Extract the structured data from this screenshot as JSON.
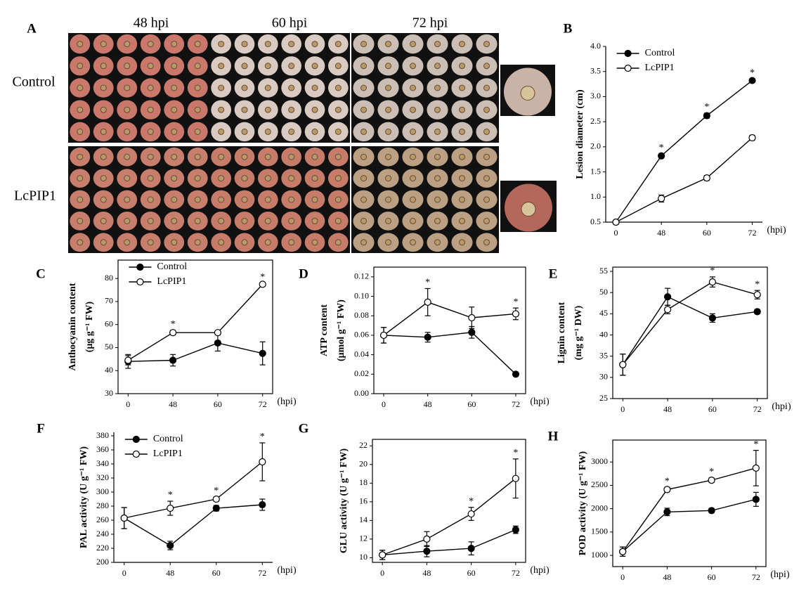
{
  "panel_a": {
    "label": "A",
    "columns": [
      "48 hpi",
      "60 hpi",
      "72 hpi"
    ],
    "rows": [
      "Control",
      "LcPIP1"
    ]
  },
  "chart_data": [
    {
      "type": "line",
      "panel": "B",
      "ylabel": [
        "Lesion diameter (cm)"
      ],
      "xlabel": "(hpi)",
      "categories": [
        "0",
        "48",
        "60",
        "72"
      ],
      "ylim": [
        0.5,
        4.0
      ],
      "yticks": [
        0.5,
        {
          "value": 1,
          "label": "1.0"
        },
        1.5,
        {
          "value": 2,
          "label": "2.0"
        },
        2.5,
        {
          "value": 3,
          "label": "3.0"
        },
        3.5,
        {
          "value": 4,
          "label": "4.0"
        }
      ],
      "legend": "upper left",
      "frame": "axes",
      "series": [
        {
          "name": "Control",
          "color": "#000000",
          "marker_fill": "#000000",
          "values": [
            0.5,
            1.82,
            2.62,
            3.32
          ],
          "errors": [
            0.02,
            0.04,
            0.05,
            0.03
          ]
        },
        {
          "name": "LcPIP1",
          "color": "#000000",
          "marker_fill": "#ffffff",
          "values": [
            0.5,
            0.97,
            1.38,
            2.18
          ],
          "errors": [
            0.02,
            0.07,
            0.05,
            0.05
          ]
        }
      ],
      "significance": [
        null,
        "*",
        "*",
        "*"
      ]
    },
    {
      "type": "line",
      "panel": "C",
      "ylabel": [
        "Anthocyanin content",
        "(μg g⁻¹ FW)"
      ],
      "xlabel": "(hpi)",
      "categories": [
        "0",
        "48",
        "60",
        "72"
      ],
      "ylim": [
        30,
        88
      ],
      "yticks": [
        30,
        40,
        50,
        60,
        70,
        80
      ],
      "legend": "upper left",
      "frame": "box",
      "series": [
        {
          "name": "Control",
          "color": "#000000",
          "marker_fill": "#000000",
          "values": [
            44,
            44.5,
            52,
            47.5
          ],
          "errors": [
            3,
            2.5,
            3.5,
            5
          ]
        },
        {
          "name": "LcPIP1",
          "color": "#000000",
          "marker_fill": "#ffffff",
          "values": [
            44.5,
            56.5,
            56.5,
            77.5
          ],
          "errors": [
            2,
            1,
            0.5,
            0.5
          ]
        }
      ],
      "significance": [
        null,
        "*",
        null,
        "*"
      ]
    },
    {
      "type": "line",
      "panel": "D",
      "ylabel": [
        "ATP content",
        "(μmol g⁻¹ FW)"
      ],
      "xlabel": "(hpi)",
      "categories": [
        "0",
        "48",
        "60",
        "72"
      ],
      "ylim": [
        0,
        0.13
      ],
      "yticks": [
        {
          "value": 0,
          "label": "0.00"
        },
        0.02,
        0.04,
        0.06,
        0.08,
        {
          "value": 0.1,
          "label": "0.10"
        },
        0.12
      ],
      "frame": "box",
      "series": [
        {
          "color": "#000000",
          "marker_fill": "#000000",
          "values": [
            0.06,
            0.058,
            0.063,
            0.02
          ],
          "errors": [
            0.008,
            0.005,
            0.006,
            0.001
          ]
        },
        {
          "color": "#000000",
          "marker_fill": "#ffffff",
          "values": [
            0.06,
            0.094,
            0.078,
            0.082
          ],
          "errors": [
            0.008,
            0.014,
            0.011,
            0.006
          ]
        }
      ],
      "significance": [
        null,
        "*",
        null,
        "*"
      ]
    },
    {
      "type": "line",
      "panel": "E",
      "ylabel": [
        "Lignin content",
        "(mg g⁻¹ DW)"
      ],
      "xlabel": "(hpi)",
      "categories": [
        "0",
        "48",
        "60",
        "72"
      ],
      "ylim": [
        25,
        56
      ],
      "yticks": [
        25,
        30,
        35,
        40,
        45,
        50,
        55
      ],
      "frame": "box",
      "series": [
        {
          "color": "#000000",
          "marker_fill": "#000000",
          "values": [
            33,
            49,
            44,
            45.5
          ],
          "errors": [
            2.5,
            2,
            1,
            0.5
          ]
        },
        {
          "color": "#000000",
          "marker_fill": "#ffffff",
          "values": [
            33,
            46,
            52.5,
            49.5
          ],
          "errors": [
            2.5,
            1,
            1.2,
            1
          ]
        }
      ],
      "significance": [
        null,
        null,
        "*",
        "*"
      ]
    },
    {
      "type": "line",
      "panel": "F",
      "ylabel": [
        "PAL activity (U g⁻¹ FW)"
      ],
      "xlabel": "(hpi)",
      "categories": [
        "0",
        "48",
        "60",
        "72"
      ],
      "ylim": [
        200,
        385
      ],
      "yticks": [
        200,
        220,
        240,
        260,
        280,
        300,
        320,
        340,
        360,
        380
      ],
      "legend": "upper left",
      "frame": "axes",
      "series": [
        {
          "name": "Control",
          "color": "#000000",
          "marker_fill": "#000000",
          "values": [
            263,
            224,
            277,
            282
          ],
          "errors": [
            15,
            6,
            4,
            8
          ]
        },
        {
          "name": "LcPIP1",
          "color": "#000000",
          "marker_fill": "#ffffff",
          "values": [
            263,
            277,
            290,
            343
          ],
          "errors": [
            15,
            10,
            3,
            27
          ]
        }
      ],
      "significance": [
        null,
        "*",
        "*",
        "*"
      ]
    },
    {
      "type": "line",
      "panel": "G",
      "ylabel": [
        "GLU activity (U g⁻¹ FW)"
      ],
      "xlabel": "(hpi)",
      "categories": [
        "0",
        "48",
        "60",
        "72"
      ],
      "ylim": [
        9.5,
        22.7
      ],
      "yticks": [
        10,
        12,
        14,
        16,
        18,
        20,
        22
      ],
      "frame": "box",
      "series": [
        {
          "color": "#000000",
          "marker_fill": "#000000",
          "values": [
            10.3,
            10.7,
            11,
            13
          ],
          "errors": [
            0.5,
            0.6,
            0.7,
            0.4
          ]
        },
        {
          "color": "#000000",
          "marker_fill": "#ffffff",
          "values": [
            10.3,
            12,
            14.7,
            18.5
          ],
          "errors": [
            0.5,
            0.8,
            0.7,
            2.1
          ]
        }
      ],
      "significance": [
        null,
        null,
        "*",
        "*"
      ]
    },
    {
      "type": "line",
      "panel": "H",
      "ylabel": [
        "POD activity (U g⁻¹ FW)"
      ],
      "xlabel": "(hpi)",
      "categories": [
        "0",
        "48",
        "60",
        "72"
      ],
      "ylim": [
        760,
        3470
      ],
      "yticks": [
        1000,
        1500,
        2000,
        2500,
        3000
      ],
      "frame": "box",
      "series": [
        {
          "color": "#000000",
          "marker_fill": "#000000",
          "values": [
            1080,
            1930,
            1960,
            2200
          ],
          "errors": [
            100,
            80,
            50,
            150
          ]
        },
        {
          "color": "#000000",
          "marker_fill": "#ffffff",
          "values": [
            1080,
            2410,
            2610,
            2870
          ],
          "errors": [
            100,
            50,
            50,
            380
          ]
        }
      ],
      "significance": [
        null,
        "*",
        "*",
        "*"
      ]
    }
  ]
}
